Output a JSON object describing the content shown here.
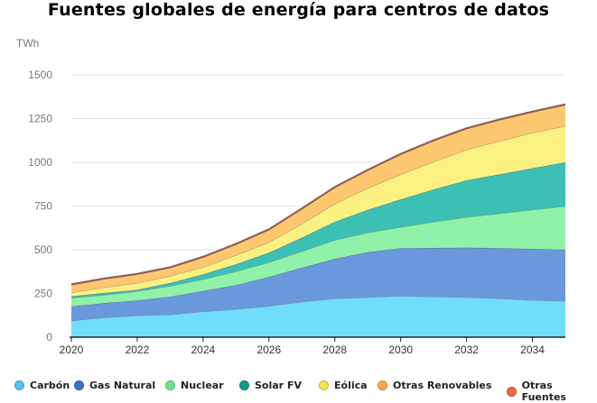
{
  "chart_data": {
    "type": "area",
    "stacked": true,
    "title": "Fuentes globales de energía para centros de datos",
    "ylabel": "TWh",
    "xlabel": "",
    "ylim": [
      0,
      1500
    ],
    "yticks": [
      "0",
      "250",
      "500",
      "750",
      "1000",
      "1250",
      "1500"
    ],
    "xticks": [
      "2020",
      "2022",
      "2024",
      "2026",
      "2028",
      "2030",
      "2032",
      "2034"
    ],
    "grid": true,
    "legend_position": "bottom",
    "x": [
      2020,
      2021,
      2022,
      2023,
      2024,
      2025,
      2026,
      2027,
      2028,
      2029,
      2030,
      2031,
      2032,
      2033,
      2034,
      2035
    ],
    "series": [
      {
        "name": "Carbón",
        "fill": "#72dcfd",
        "color": "#4fc3f7",
        "values": [
          95,
          112,
          124,
          129,
          147,
          160,
          178,
          202,
          221,
          228,
          236,
          231,
          228,
          221,
          212,
          207
        ]
      },
      {
        "name": "Gas Natural",
        "fill": "#6a98dc",
        "color": "#3f6fc9",
        "values": [
          81,
          83,
          86,
          102,
          117,
          138,
          167,
          195,
          227,
          258,
          273,
          279,
          284,
          288,
          293,
          293
        ]
      },
      {
        "name": "Nuclear",
        "fill": "#8ff2a8",
        "color": "#6fe08e",
        "values": [
          48,
          46,
          52,
          62,
          67,
          78,
          83,
          94,
          107,
          112,
          120,
          149,
          174,
          198,
          224,
          248
        ]
      },
      {
        "name": "Solar FV",
        "fill": "#3cc0b3",
        "color": "#0f9a8c",
        "values": [
          10,
          12,
          9,
          17,
          28,
          41,
          55,
          78,
          105,
          130,
          159,
          186,
          211,
          224,
          237,
          252
        ]
      },
      {
        "name": "Eólica",
        "fill": "#fbf182",
        "color": "#f6e34c",
        "values": [
          21,
          31,
          39,
          40,
          41,
          52,
          60,
          78,
          102,
          125,
          143,
          158,
          175,
          190,
          203,
          207
        ]
      },
      {
        "name": "Otras Renovables",
        "fill": "#fdc770",
        "color": "#f7a94a",
        "values": [
          43,
          48,
          48,
          46,
          56,
          61,
          70,
          85,
          93,
          100,
          113,
          119,
          119,
          120,
          117,
          120
        ]
      },
      {
        "name": "Otras Fuentes",
        "fill": "#9a6a5e",
        "color": "#f06a45",
        "values": [
          4,
          4,
          4,
          4,
          4,
          4,
          4,
          4,
          4,
          4,
          4,
          4,
          4,
          4,
          4,
          4
        ]
      }
    ]
  }
}
